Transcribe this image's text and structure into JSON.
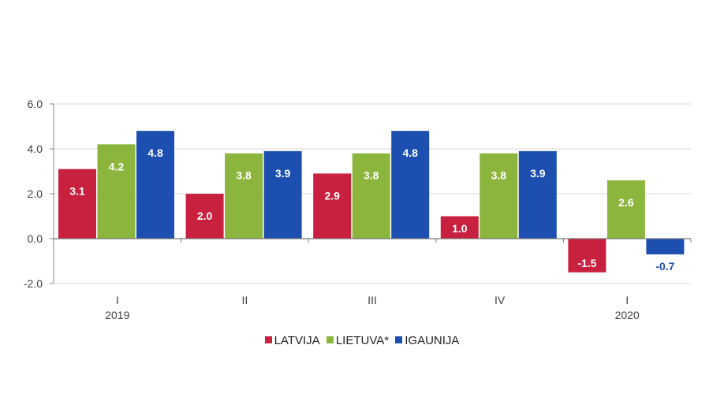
{
  "chart_data": {
    "type": "bar",
    "categories": [
      "I",
      "II",
      "III",
      "IV",
      "I"
    ],
    "category_groups": [
      "2019",
      "",
      "",
      "",
      "2020"
    ],
    "series": [
      {
        "name": "LATVIJA",
        "color": "#c8203f",
        "values": [
          3.1,
          2.0,
          2.9,
          1.0,
          -1.5
        ]
      },
      {
        "name": "LIETUVA*",
        "color": "#8bb53c",
        "values": [
          4.2,
          3.8,
          3.8,
          3.8,
          2.6
        ]
      },
      {
        "name": "IGAUNIJA",
        "color": "#1c4fb0",
        "values": [
          4.8,
          3.9,
          4.8,
          3.9,
          -0.7
        ]
      }
    ],
    "data_labels": [
      [
        "3.1",
        "2.0",
        "2.9",
        "1.0",
        "-1.5"
      ],
      [
        "4.2",
        "3.8",
        "3.8",
        "3.8",
        "2.6"
      ],
      [
        "4.8",
        "3.9",
        "4.8",
        "3.9",
        "-0.7"
      ]
    ],
    "yticks": [
      "-2.0",
      "0.0",
      "2.0",
      "4.0",
      "6.0"
    ],
    "ylim": [
      -2,
      6
    ],
    "grid": true,
    "legend_position": "bottom",
    "title": "",
    "xlabel": "",
    "ylabel": ""
  }
}
